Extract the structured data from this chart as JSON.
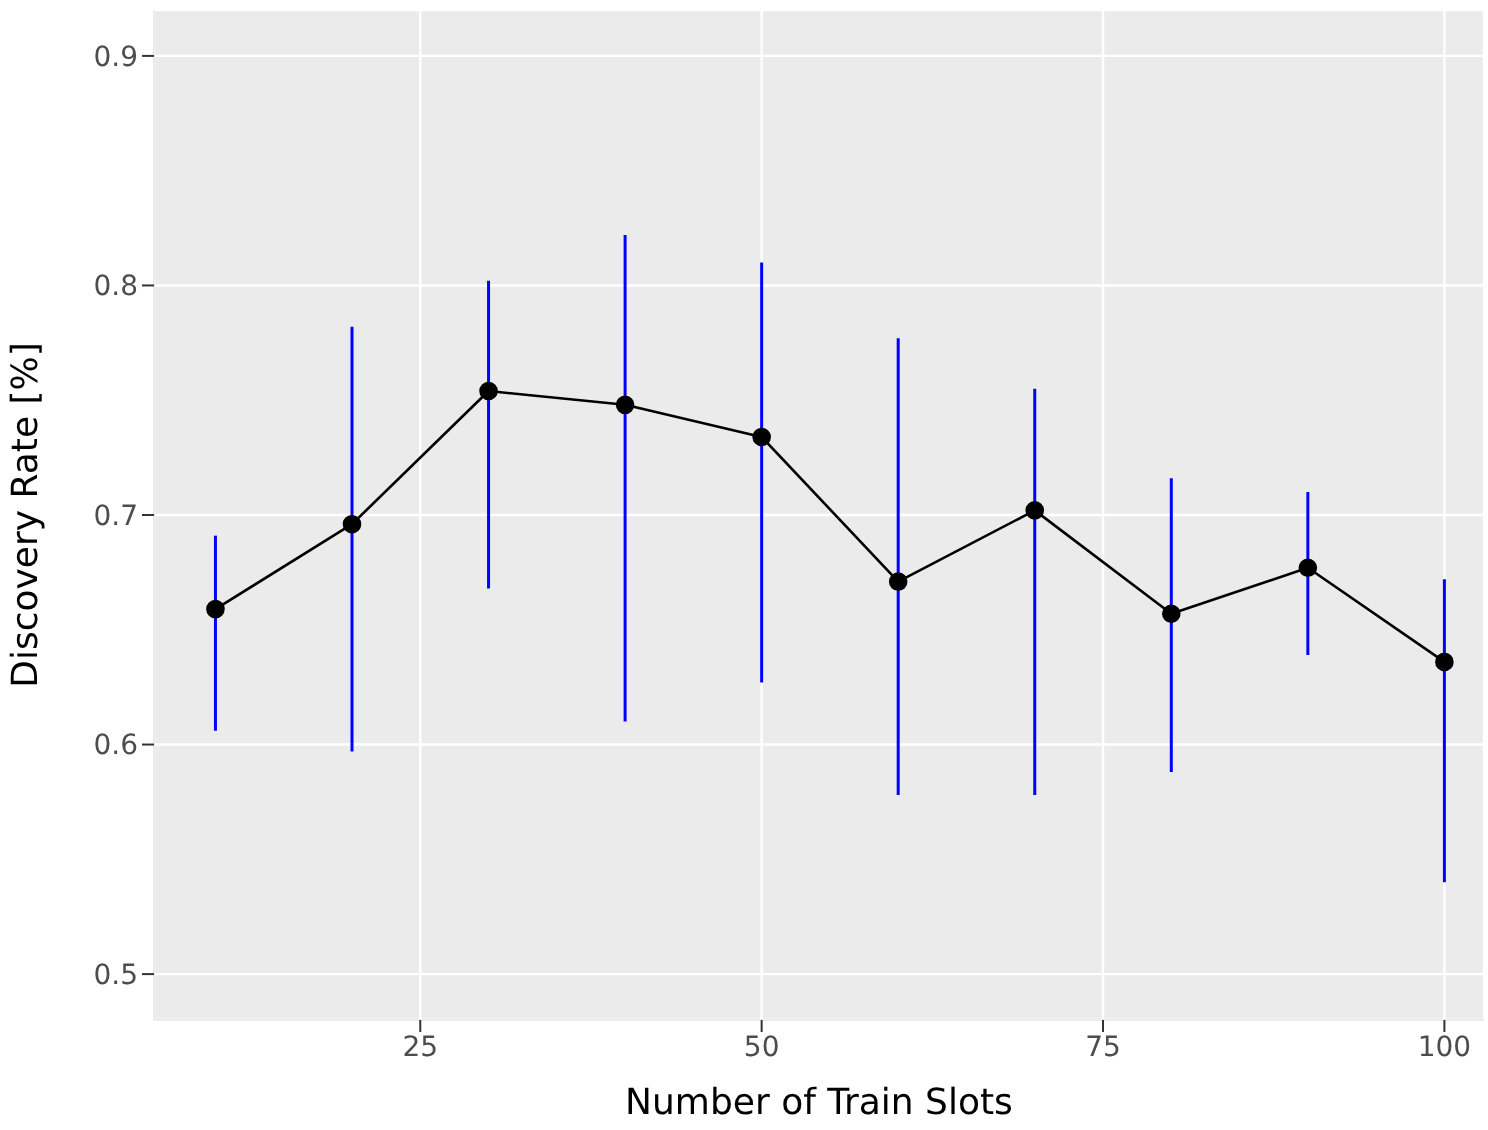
{
  "chart_data": {
    "type": "line",
    "xlabel": "Number of Train Slots",
    "ylabel": "Discovery Rate [%]",
    "x": [
      10,
      20,
      30,
      40,
      50,
      60,
      70,
      80,
      90,
      100
    ],
    "series": [
      {
        "color": "#000000",
        "values": [
          0.659,
          0.696,
          0.754,
          0.748,
          0.734,
          0.671,
          0.702,
          0.657,
          0.677,
          0.636
        ],
        "errors": [
          [
            0.606,
            0.691
          ],
          [
            0.597,
            0.782
          ],
          [
            0.668,
            0.802
          ],
          [
            0.61,
            0.822
          ],
          [
            0.627,
            0.81
          ],
          [
            0.578,
            0.777
          ],
          [
            0.578,
            0.755
          ],
          [
            0.588,
            0.716
          ],
          [
            0.639,
            0.71
          ],
          [
            0.54,
            0.672
          ]
        ]
      }
    ],
    "xlim": [
      5.5,
      102.9
    ],
    "xticks": [
      25,
      50,
      75,
      100
    ],
    "ylim": [
      0.48,
      0.92
    ],
    "yticks": [
      0.5,
      0.6,
      0.7,
      0.8,
      0.9
    ],
    "grid": true,
    "marker": "circle",
    "line_style": "solid",
    "legend": false
  }
}
